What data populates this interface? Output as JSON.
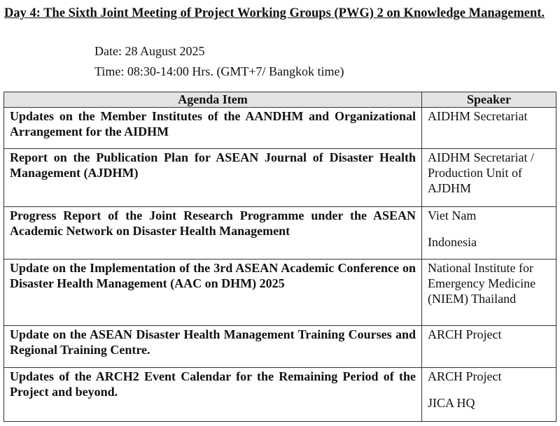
{
  "title": "Day 4: The Sixth Joint Meeting of Project Working Groups (PWG) 2 on Knowledge Management.",
  "date": "Date:  28 August 2025",
  "time": "Time: 08:30-14:00 Hrs. (GMT+7/ Bangkok time)",
  "table": {
    "headers": [
      "Agenda Item",
      "Speaker"
    ],
    "rows": [
      {
        "item": "Updates on the Member Institutes of the AANDHM and Organizational Arrangement for the AIDHM",
        "speakers": [
          "AIDHM Secretariat"
        ]
      },
      {
        "item": "Report on the Publication Plan for ASEAN Journal of Disaster Health Management (AJDHM)",
        "speakers": [
          "AIDHM Secretariat / Production Unit of AJDHM"
        ]
      },
      {
        "item": "Progress Report of the Joint Research Programme under the ASEAN Academic Network on Disaster Health Management",
        "speakers": [
          "Viet Nam",
          "Indonesia"
        ]
      },
      {
        "item": "Update on the Implementation of the 3rd ASEAN Academic Conference on Disaster Health Management (AAC on DHM) 2025",
        "speakers": [
          "National Institute for Emergency Medicine (NIEM) Thailand"
        ]
      },
      {
        "item": "Update on the ASEAN Disaster Health Management Training Courses and Regional Training Centre.",
        "speakers": [
          "ARCH Project"
        ]
      },
      {
        "item": "Updates of the ARCH2 Event Calendar for the Remaining Period of the Project and beyond.",
        "speakers": [
          "ARCH Project",
          "JICA HQ"
        ]
      }
    ]
  }
}
